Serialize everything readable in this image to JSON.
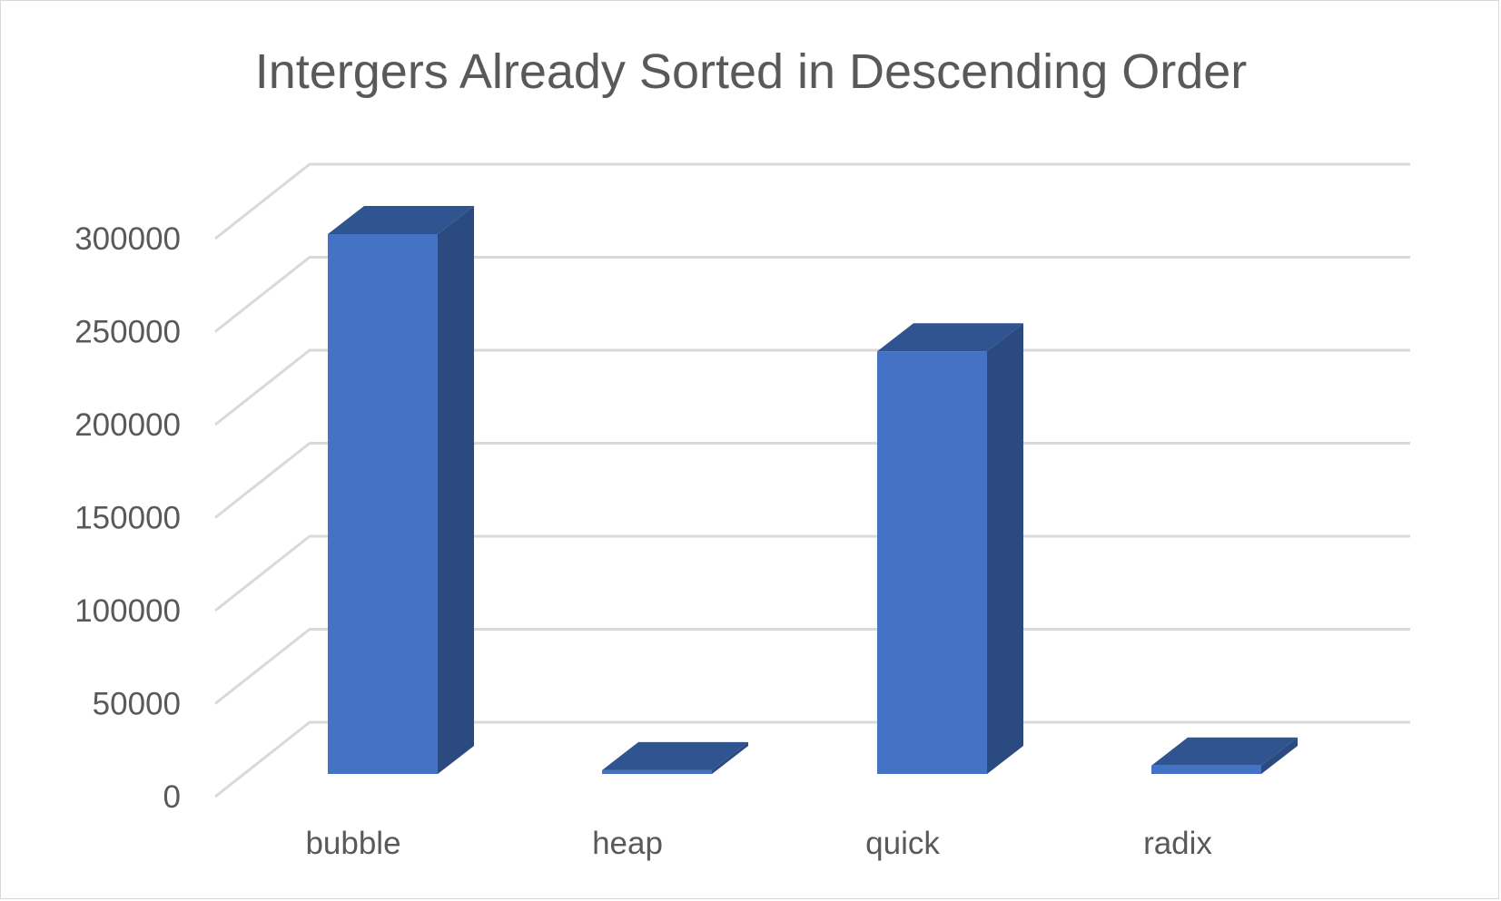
{
  "chart_data": {
    "type": "bar",
    "style": "3d-column",
    "title": "Intergers Already Sorted in Descending Order",
    "xlabel": "",
    "ylabel": "",
    "categories": [
      "bubble",
      "heap",
      "quick",
      "radix"
    ],
    "values": [
      290000,
      2000,
      227000,
      4500
    ],
    "ylim": [
      0,
      300000
    ],
    "yticks": [
      0,
      50000,
      100000,
      150000,
      200000,
      250000,
      300000
    ],
    "ytick_labels": [
      "0",
      "50000",
      "100000",
      "150000",
      "200000",
      "250000",
      "300000"
    ],
    "grid": true,
    "legend": "none",
    "colors": {
      "front": "#4472c4",
      "top": "#30548f",
      "side": "#2b4a7f",
      "grid": "#d9d9d9",
      "text": "#595959"
    }
  }
}
